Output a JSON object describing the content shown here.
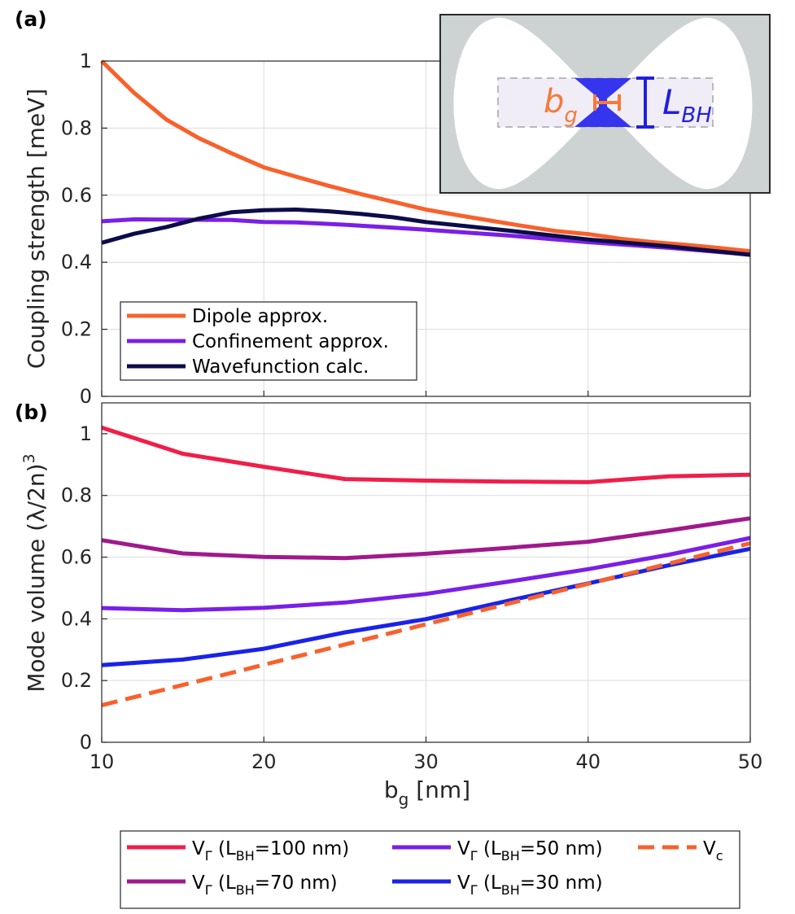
{
  "chart_data": [
    {
      "panel_label": "(a)",
      "type": "line",
      "ylabel": "Coupling strength [meV]",
      "xlim": [
        10,
        50
      ],
      "ylim": [
        0,
        1.0
      ],
      "xticks": [
        "10",
        "20",
        "30",
        "40",
        "50"
      ],
      "yticks": [
        "0",
        "0.2",
        "0.4",
        "0.6",
        "0.8",
        "1"
      ],
      "series": [
        {
          "name": "Dipole approx.",
          "color": "#f8612c",
          "x": [
            10,
            12,
            14,
            16,
            18,
            20,
            22,
            24,
            26,
            28,
            30,
            32,
            34,
            36,
            38,
            40,
            42,
            44,
            46,
            48,
            50
          ],
          "y": [
            1.0,
            0.905,
            0.825,
            0.77,
            0.725,
            0.683,
            0.655,
            0.628,
            0.603,
            0.58,
            0.557,
            0.54,
            0.524,
            0.508,
            0.493,
            0.484,
            0.47,
            0.46,
            0.452,
            0.443,
            0.433
          ]
        },
        {
          "name": "Confinement approx.",
          "color": "#7a1fe6",
          "x": [
            10,
            12,
            15,
            18,
            20,
            22,
            25,
            30,
            35,
            40,
            45,
            50
          ],
          "y": [
            0.522,
            0.528,
            0.527,
            0.526,
            0.52,
            0.519,
            0.512,
            0.497,
            0.48,
            0.46,
            0.443,
            0.423
          ]
        },
        {
          "name": "Wavefunction calc.",
          "color": "#0c0c4a",
          "x": [
            10,
            12,
            14,
            16,
            18,
            20,
            22,
            24,
            26,
            28,
            30,
            32,
            35,
            40,
            45,
            50
          ],
          "y": [
            0.458,
            0.485,
            0.505,
            0.53,
            0.549,
            0.555,
            0.557,
            0.552,
            0.544,
            0.534,
            0.52,
            0.51,
            0.495,
            0.468,
            0.447,
            0.422
          ]
        }
      ],
      "legend": {
        "location": "bottom-left",
        "entries": [
          "Dipole approx.",
          "Confinement approx.",
          "Wavefunction calc."
        ]
      },
      "inset": {
        "bg_label": "b",
        "bg_subscript": "g",
        "lbh_label": "L",
        "lbh_subscript": "BH"
      }
    },
    {
      "panel_label": "(b)",
      "type": "line",
      "ylabel": "Mode volume (λ/2n)",
      "ylabel_superscript": "3",
      "xlabel": "b",
      "xlabel_subscript": "g",
      "xlabel_suffix": " [nm]",
      "xlim": [
        10,
        50
      ],
      "ylim": [
        0,
        1.1
      ],
      "xticks": [
        "10",
        "20",
        "30",
        "40",
        "50"
      ],
      "yticks": [
        "0",
        "0.2",
        "0.4",
        "0.6",
        "0.8",
        "1"
      ],
      "series": [
        {
          "name": "VΓ (LBH=100 nm)",
          "color": "#f01e4a",
          "dashed": false,
          "x": [
            10,
            15,
            20,
            25,
            30,
            35,
            40,
            45,
            50
          ],
          "y": [
            1.02,
            0.935,
            0.893,
            0.853,
            0.848,
            0.845,
            0.843,
            0.862,
            0.867
          ]
        },
        {
          "name": "VΓ (LBH=70 nm)",
          "color": "#a0198c",
          "dashed": false,
          "x": [
            10,
            15,
            20,
            25,
            30,
            35,
            40,
            45,
            50
          ],
          "y": [
            0.655,
            0.612,
            0.601,
            0.597,
            0.611,
            0.63,
            0.65,
            0.687,
            0.726
          ]
        },
        {
          "name": "VΓ (LBH=50 nm)",
          "color": "#7a1fe6",
          "dashed": false,
          "x": [
            10,
            15,
            20,
            25,
            30,
            35,
            40,
            45,
            50
          ],
          "y": [
            0.435,
            0.428,
            0.436,
            0.453,
            0.481,
            0.52,
            0.561,
            0.608,
            0.662
          ]
        },
        {
          "name": "VΓ (LBH=30 nm)",
          "color": "#1a22e8",
          "dashed": false,
          "x": [
            10,
            15,
            20,
            25,
            30,
            35,
            40,
            45,
            50
          ],
          "y": [
            0.25,
            0.268,
            0.303,
            0.356,
            0.399,
            0.458,
            0.515,
            0.574,
            0.627
          ]
        },
        {
          "name": "Vc",
          "color": "#f8612c",
          "dashed": true,
          "x": [
            10,
            50
          ],
          "y": [
            0.12,
            0.645
          ]
        }
      ],
      "legend": {
        "location": "below",
        "items": [
          {
            "main": "V",
            "greek": "Γ",
            "open": " (L",
            "sub": "BH",
            "close": "=100 nm)"
          },
          {
            "main": "V",
            "greek": "Γ",
            "open": " (L",
            "sub": "BH",
            "close": "=50 nm)"
          },
          {
            "main": "V",
            "greek": "",
            "open": "",
            "sub": "c",
            "close": ""
          },
          {
            "main": "V",
            "greek": "Γ",
            "open": " (L",
            "sub": "BH",
            "close": "=70 nm)"
          },
          {
            "main": "V",
            "greek": "Γ",
            "open": " (L",
            "sub": "BH",
            "close": "=30 nm)"
          }
        ]
      }
    }
  ]
}
